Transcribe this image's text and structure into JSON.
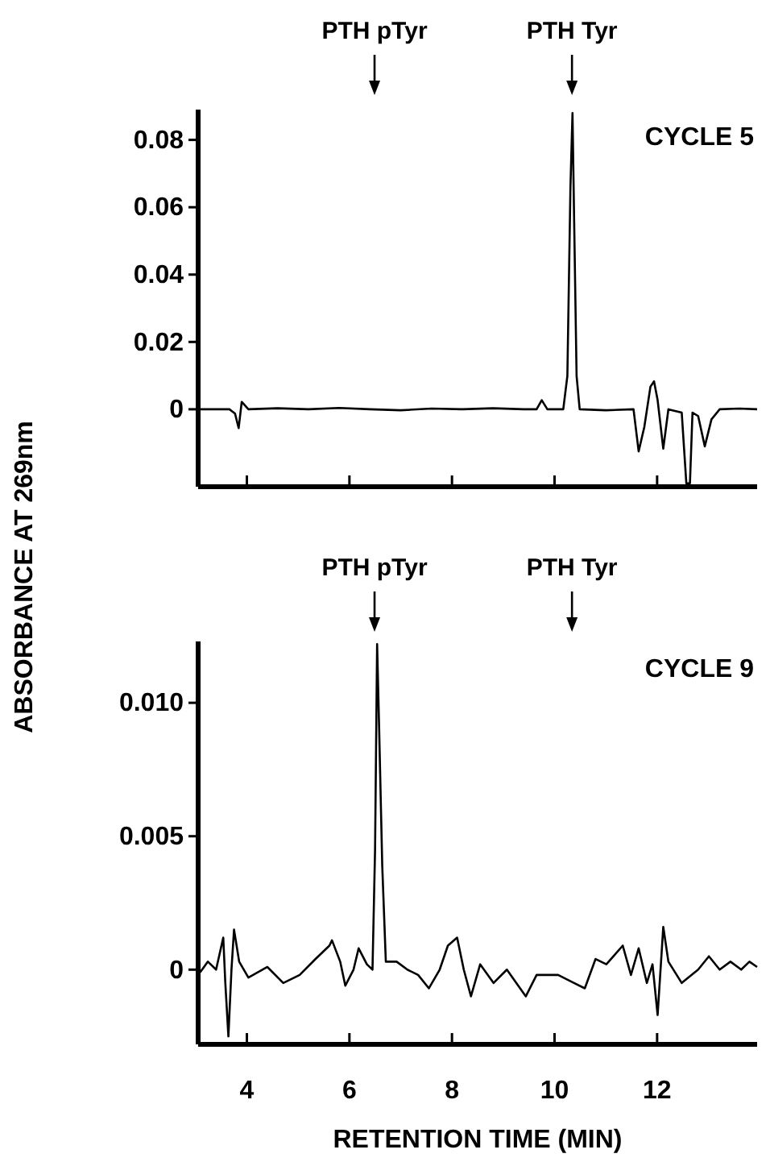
{
  "chart_data": [
    {
      "type": "line",
      "title": "CYCLE 5",
      "ylabel": "ABSORBANCE AT 269nm",
      "ref_lines": [
        {
          "axis": "x",
          "value": 6.49,
          "label": "PTH pTyr"
        },
        {
          "axis": "x",
          "value": 10.34,
          "label": "PTH Tyr"
        }
      ],
      "series": [
        {
          "color": "#000000",
          "x": [
            3.05,
            3.66,
            3.77,
            3.84,
            3.9,
            4.03,
            4.6,
            5.2,
            5.8,
            6.4,
            7.0,
            7.6,
            8.2,
            8.8,
            9.4,
            9.65,
            9.75,
            9.86,
            10.17,
            10.25,
            10.31,
            10.35,
            10.38,
            10.43,
            10.49,
            11.0,
            11.54,
            11.64,
            11.75,
            11.87,
            11.94,
            12.01,
            12.12,
            12.22,
            12.48,
            12.57,
            12.64,
            12.69,
            12.8,
            12.93,
            13.06,
            13.22,
            13.6,
            13.95
          ],
          "values": [
            0,
            0,
            -0.0013,
            -0.0056,
            0.0022,
            0,
            0.0003,
            0,
            0.0004,
            0,
            -0.0003,
            0.0002,
            0,
            0.0003,
            0,
            0,
            0.0027,
            0,
            0,
            0.0099,
            0.066,
            0.088,
            0.058,
            0.0099,
            0,
            -0.0003,
            0,
            -0.0125,
            -0.0053,
            0.0067,
            0.0083,
            0.0027,
            -0.0117,
            0,
            -0.001,
            -0.022,
            -0.022,
            -0.001,
            -0.002,
            -0.011,
            -0.003,
            0,
            0.0002,
            0
          ]
        }
      ],
      "xlim": [
        3.05,
        13.95
      ],
      "xticks": [
        4,
        6,
        8,
        10,
        12
      ],
      "ylim": [
        -0.023,
        0.089
      ],
      "yticks": [
        0,
        0.02,
        0.04,
        0.06,
        0.08
      ],
      "tick_labels": "y"
    },
    {
      "type": "line",
      "title": "CYCLE 9",
      "xlabel": "RETENTION TIME (MIN)",
      "ref_lines": [
        {
          "axis": "x",
          "value": 6.49,
          "label": "PTH pTyr"
        },
        {
          "axis": "x",
          "value": 10.34,
          "label": "PTH Tyr"
        }
      ],
      "series": [
        {
          "color": "#000000",
          "x": [
            3.09,
            3.24,
            3.4,
            3.54,
            3.58,
            3.64,
            3.7,
            3.75,
            3.85,
            4.03,
            4.4,
            4.71,
            5.03,
            5.34,
            5.61,
            5.66,
            5.82,
            5.92,
            6.08,
            6.18,
            6.34,
            6.45,
            6.5,
            6.54,
            6.58,
            6.64,
            6.71,
            6.92,
            7.13,
            7.34,
            7.55,
            7.76,
            7.92,
            8.1,
            8.23,
            8.37,
            8.55,
            8.81,
            9.07,
            9.44,
            9.65,
            10.07,
            10.38,
            10.59,
            10.8,
            11.01,
            11.33,
            11.49,
            11.64,
            11.8,
            11.91,
            12.01,
            12.12,
            12.22,
            12.48,
            12.8,
            13.01,
            13.22,
            13.43,
            13.64,
            13.8,
            13.95
          ],
          "values": [
            -0.0001,
            0.0003,
            0,
            0.0012,
            -0.0005,
            -0.0025,
            0,
            0.0015,
            0.0003,
            -0.0003,
            0.0001,
            -0.0005,
            -0.0002,
            0.0004,
            0.0009,
            0.0011,
            0.0003,
            -0.0006,
            0,
            0.0008,
            0.0002,
            0,
            0.0045,
            0.0122,
            0.009,
            0.0039,
            0.0003,
            0.0003,
            0,
            -0.0002,
            -0.0007,
            0,
            0.0009,
            0.0012,
            0,
            -0.001,
            0.0002,
            -0.0005,
            0,
            -0.001,
            -0.0002,
            -0.0002,
            -0.0005,
            -0.0007,
            0.0004,
            0.0002,
            0.0009,
            -0.0002,
            0.0008,
            -0.0005,
            0.0002,
            -0.0017,
            0.0016,
            0.0003,
            -0.0005,
            0,
            0.0005,
            0,
            0.0003,
            0,
            0.0003,
            0.0001
          ]
        }
      ],
      "xlim": [
        3.05,
        13.95
      ],
      "xticks": [
        4,
        6,
        8,
        10,
        12
      ],
      "ylim": [
        -0.0028,
        0.0123
      ],
      "yticks": [
        0,
        0.005,
        {
          "value": 0.01,
          "label": "0.010"
        }
      ]
    }
  ]
}
